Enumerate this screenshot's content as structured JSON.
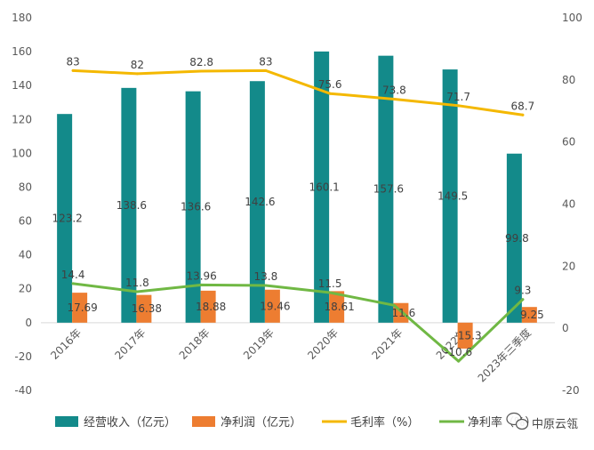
{
  "chart_data": {
    "type": "bar",
    "categories": [
      "2016年",
      "2017年",
      "2018年",
      "2019年",
      "2020年",
      "2021年",
      "2022年",
      "2023年三季度"
    ],
    "series": [
      {
        "name": "经营收入（亿元）",
        "type": "bar",
        "axis": "left",
        "color": "#138a8a",
        "values": [
          123.2,
          138.6,
          136.6,
          142.6,
          160.1,
          157.6,
          149.5,
          99.8
        ],
        "labels": [
          "123.2",
          "138.6",
          "136.6",
          "142.6",
          "160.1",
          "157.6",
          "149.5",
          "99.8"
        ]
      },
      {
        "name": "净利润（亿元）",
        "type": "bar",
        "axis": "left",
        "color": "#ed7d31",
        "values": [
          17.69,
          16.38,
          18.88,
          19.46,
          18.61,
          11.6,
          -15.3,
          9.25
        ],
        "labels": [
          "17.69",
          "16.38",
          "18.88",
          "19.46",
          "18.61",
          "11.6",
          "-15.3",
          "9.25"
        ]
      },
      {
        "name": "毛利率（%）",
        "type": "line",
        "axis": "right",
        "color": "#f4b800",
        "values": [
          83,
          82,
          82.8,
          83,
          75.6,
          73.8,
          71.7,
          68.7
        ],
        "labels": [
          "83",
          "82",
          "82.8",
          "83",
          "75.6",
          "73.8",
          "71.7",
          "68.7"
        ]
      },
      {
        "name": "净利率（%）",
        "type": "line",
        "axis": "right",
        "color": "#70b844",
        "values": [
          14.4,
          11.8,
          13.96,
          13.8,
          11.5,
          7.4,
          -10.6,
          9.3
        ],
        "labels": [
          "14.4",
          "11.8",
          "13.96",
          "13.8",
          "11.5",
          "",
          "-10.6",
          "9.3"
        ]
      }
    ],
    "y_left": {
      "min": -40,
      "max": 180,
      "ticks": [
        "-40",
        "-20",
        "0",
        "20",
        "40",
        "60",
        "80",
        "100",
        "120",
        "140",
        "160",
        "180"
      ]
    },
    "y_right": {
      "min": -20,
      "max": 100,
      "ticks": [
        "-20",
        "0",
        "20",
        "40",
        "60",
        "80",
        "100"
      ]
    },
    "legend_position": "bottom",
    "grid": false
  },
  "legend": {
    "items": [
      {
        "label": "经营收入（亿元）",
        "color": "#138a8a",
        "kind": "bar"
      },
      {
        "label": "净利润（亿元）",
        "color": "#ed7d31",
        "kind": "bar"
      },
      {
        "label": "毛利率（%）",
        "color": "#f4b800",
        "kind": "line"
      },
      {
        "label": "净利率（%）",
        "color": "#70b844",
        "kind": "line"
      }
    ]
  },
  "watermark": {
    "text": "中原云瓴",
    "icon": "wechat-icon"
  }
}
